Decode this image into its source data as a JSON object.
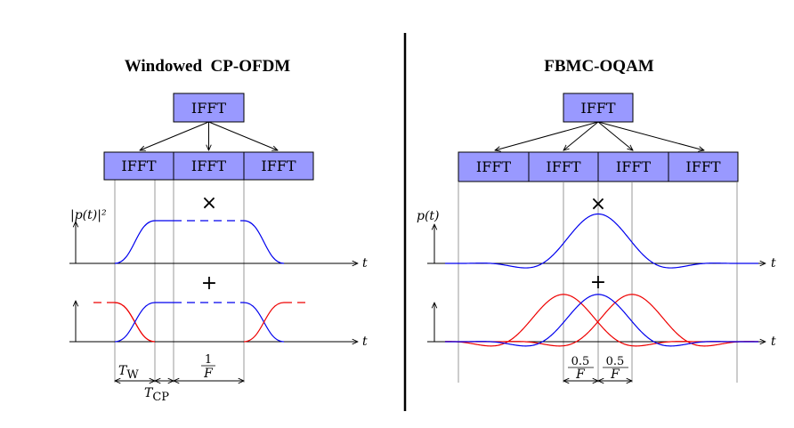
{
  "left_panel": {
    "title": "Windowed  CP-OFDM",
    "top_block_label": "IFFT",
    "row_block_labels": [
      "IFFT",
      "IFFT",
      "IFFT"
    ],
    "pulse_axis_label": "|p(t)|²",
    "time_axis_label_top": "t",
    "time_axis_label_bottom": "t",
    "multiply_symbol": "×",
    "add_symbol": "+",
    "window_label": "T_W",
    "window_label_main": "T",
    "window_label_sub": "W",
    "cp_label_main": "T",
    "cp_label_sub": "CP",
    "symbol_duration_num": "1",
    "symbol_duration_den": "F"
  },
  "right_panel": {
    "title": "FBMC-OQAM",
    "top_block_label": "IFFT",
    "row_block_labels": [
      "IFFT",
      "IFFT",
      "IFFT",
      "IFFT"
    ],
    "pulse_axis_label": "p(t)",
    "time_axis_label_top": "t",
    "time_axis_label_bottom": "t",
    "multiply_symbol": "×",
    "add_symbol": "+",
    "spacing_num_left": "0.5",
    "spacing_den_left": "F",
    "spacing_num_right": "0.5",
    "spacing_den_right": "F"
  },
  "colors": {
    "block_fill": "#9999ff",
    "curve_blue": "#0000ee",
    "curve_red": "#ee0000",
    "guide_gray": "#9a9a9a",
    "ink": "#000000"
  }
}
